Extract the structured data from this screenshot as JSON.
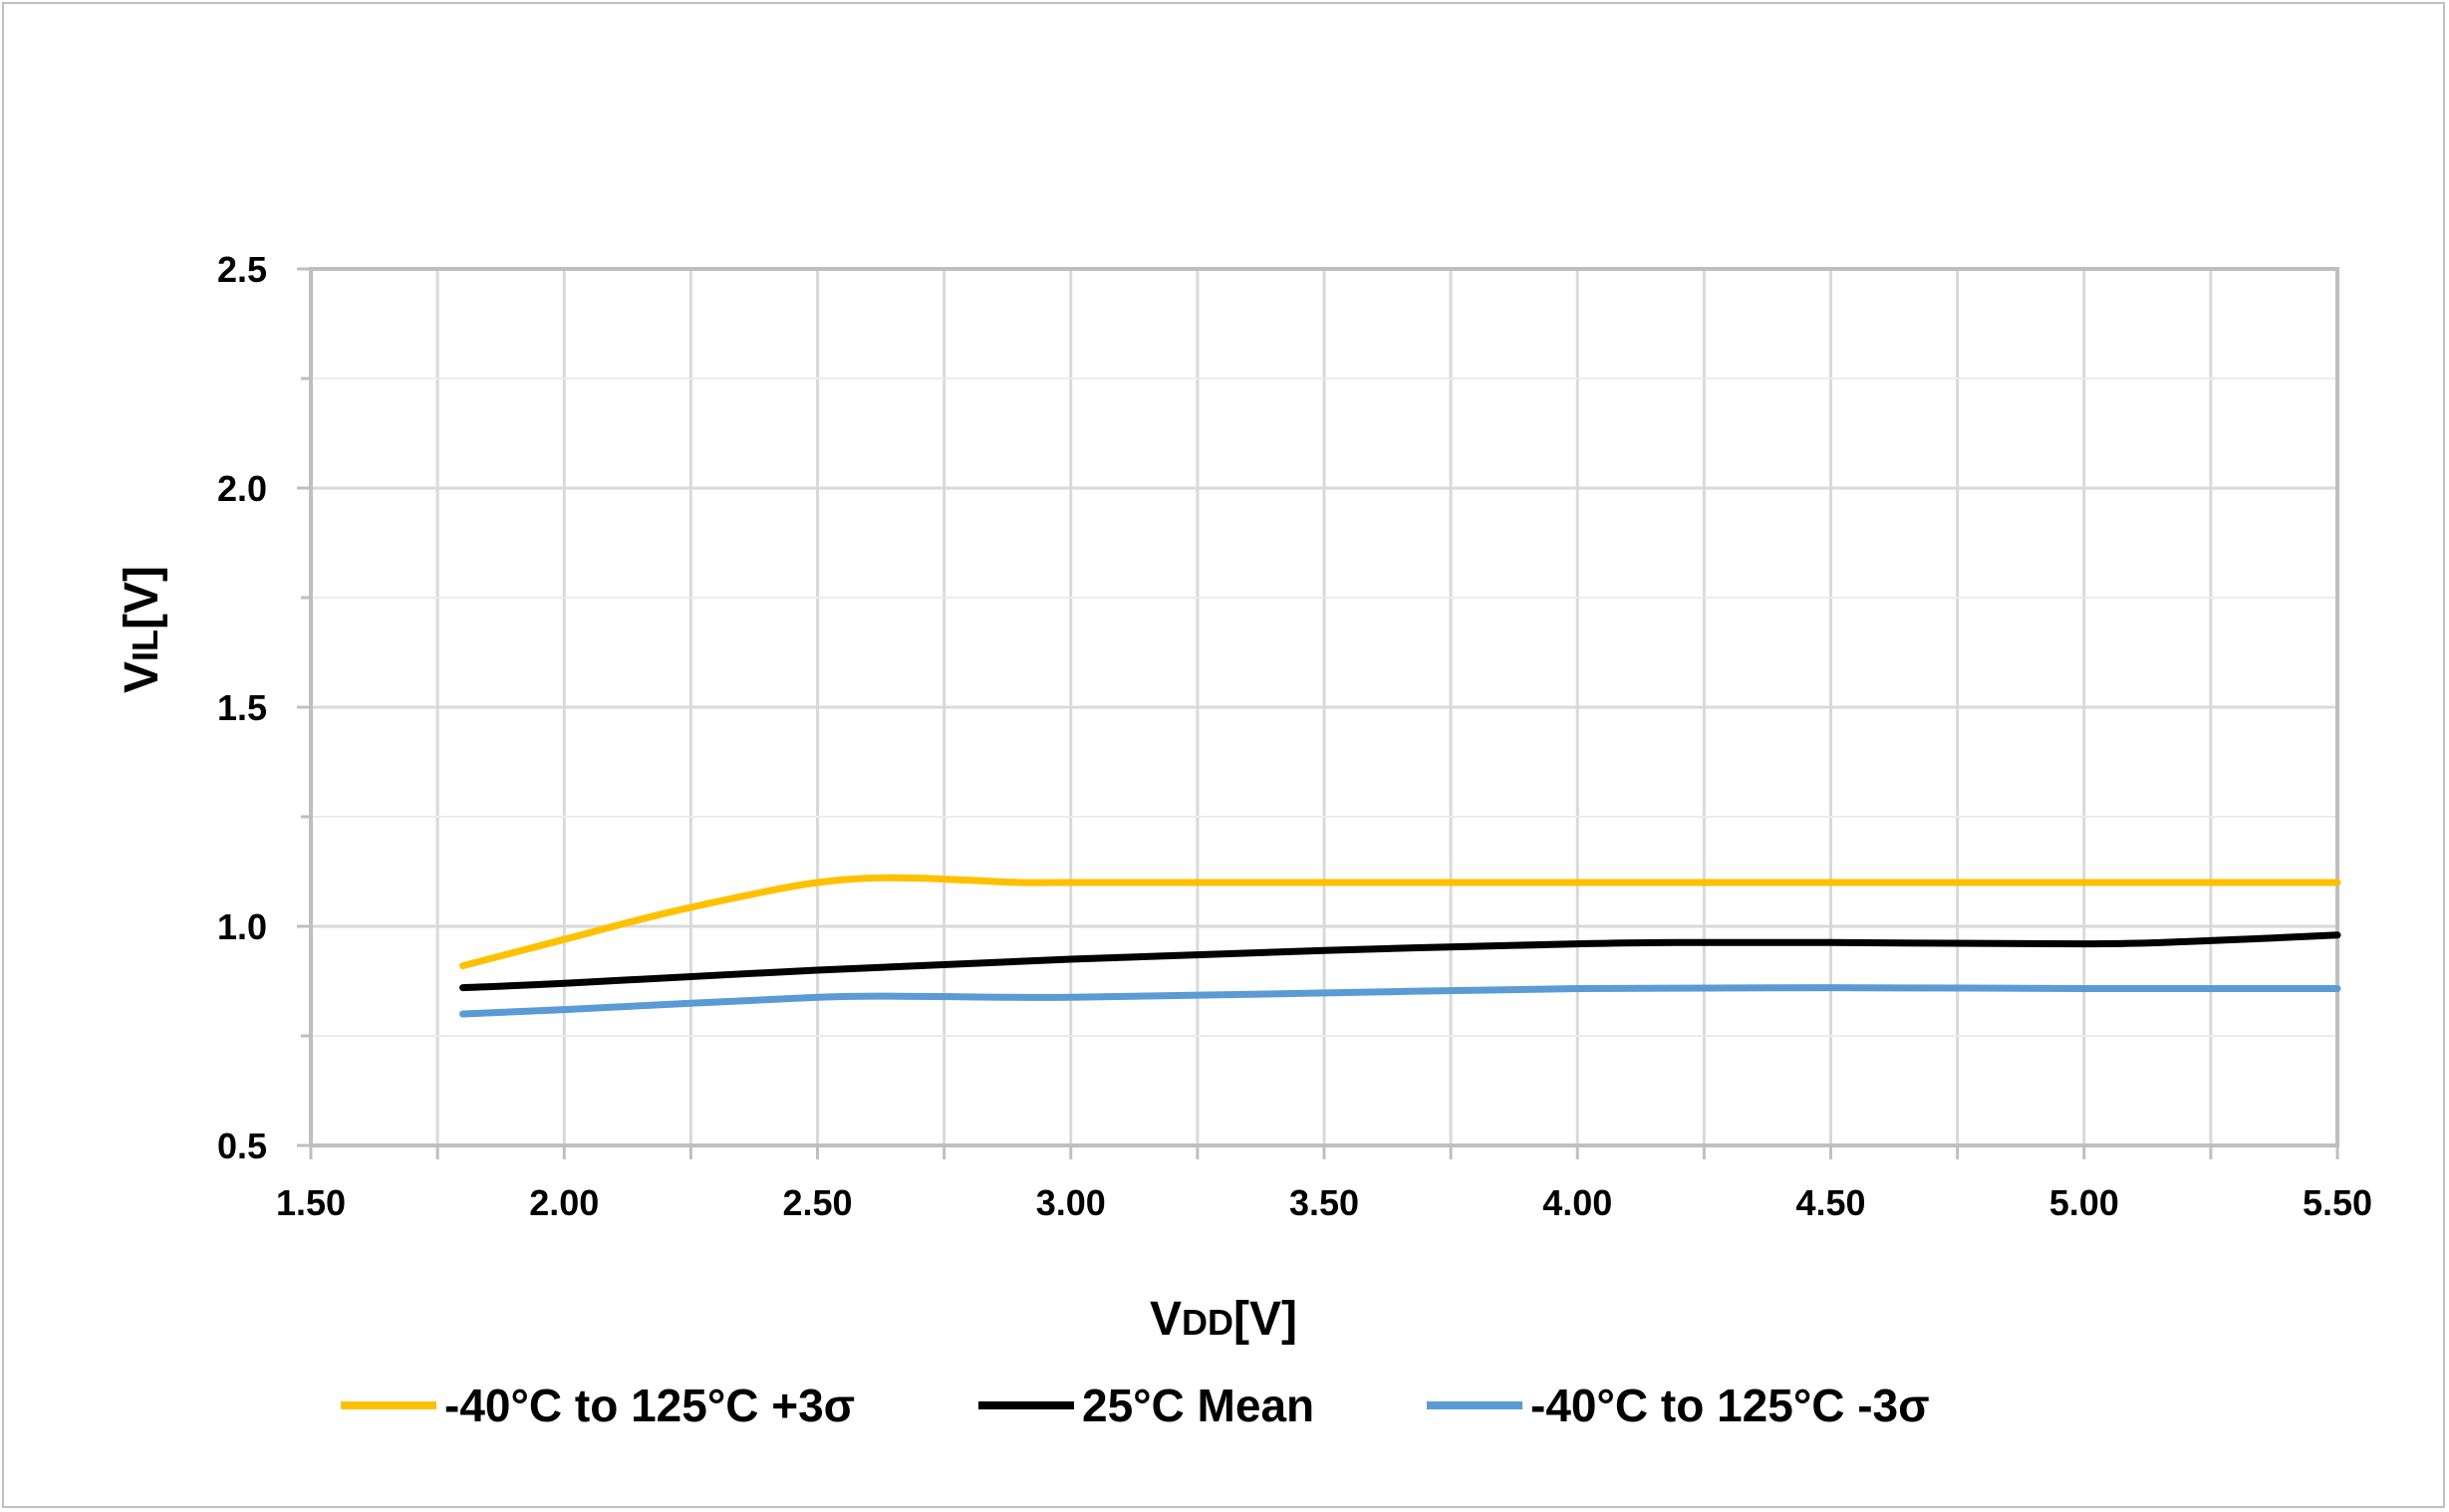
{
  "chart_data": {
    "type": "line",
    "xlabel": {
      "main": "V",
      "sub": "DD",
      "unit": "[V]"
    },
    "ylabel": {
      "main": "V",
      "sub": "IL",
      "unit": "[V]"
    },
    "xlim": [
      1.5,
      5.5
    ],
    "ylim": [
      0.5,
      2.5
    ],
    "x_ticks": [
      1.5,
      2.0,
      2.5,
      3.0,
      3.5,
      4.0,
      4.5,
      5.0,
      5.5
    ],
    "x_tick_labels": [
      "1.50",
      "2.00",
      "2.50",
      "3.00",
      "3.50",
      "4.00",
      "4.50",
      "5.00",
      "5.50"
    ],
    "y_ticks": [
      0.5,
      1.0,
      1.5,
      2.0,
      2.5
    ],
    "y_tick_labels": [
      "0.5",
      "1.0",
      "1.5",
      "2.0",
      "2.5"
    ],
    "grid": true,
    "legend_position": "bottom",
    "series": [
      {
        "name": "-40°C to 125°C +3σ",
        "color": "#FFC000",
        "x": [
          1.8,
          2.0,
          2.2,
          2.4,
          2.5,
          2.6,
          2.7,
          2.8,
          2.9,
          3.0,
          3.5,
          4.0,
          4.5,
          5.0,
          5.5
        ],
        "y": [
          0.91,
          0.97,
          1.03,
          1.08,
          1.1,
          1.11,
          1.11,
          1.105,
          1.1,
          1.1,
          1.1,
          1.1,
          1.1,
          1.1,
          1.1
        ]
      },
      {
        "name": "25°C Mean",
        "color": "#000000",
        "x": [
          1.8,
          2.0,
          2.5,
          3.0,
          3.5,
          4.0,
          4.2,
          4.5,
          5.0,
          5.2,
          5.5
        ],
        "y": [
          0.86,
          0.87,
          0.9,
          0.925,
          0.945,
          0.96,
          0.963,
          0.963,
          0.96,
          0.965,
          0.98
        ]
      },
      {
        "name": "-40°C to 125°C -3σ",
        "color": "#5B9BD5",
        "x": [
          1.8,
          2.0,
          2.5,
          2.7,
          3.0,
          3.5,
          4.0,
          4.5,
          5.0,
          5.5
        ],
        "y": [
          0.8,
          0.81,
          0.838,
          0.84,
          0.838,
          0.848,
          0.858,
          0.86,
          0.858,
          0.858
        ]
      }
    ]
  }
}
